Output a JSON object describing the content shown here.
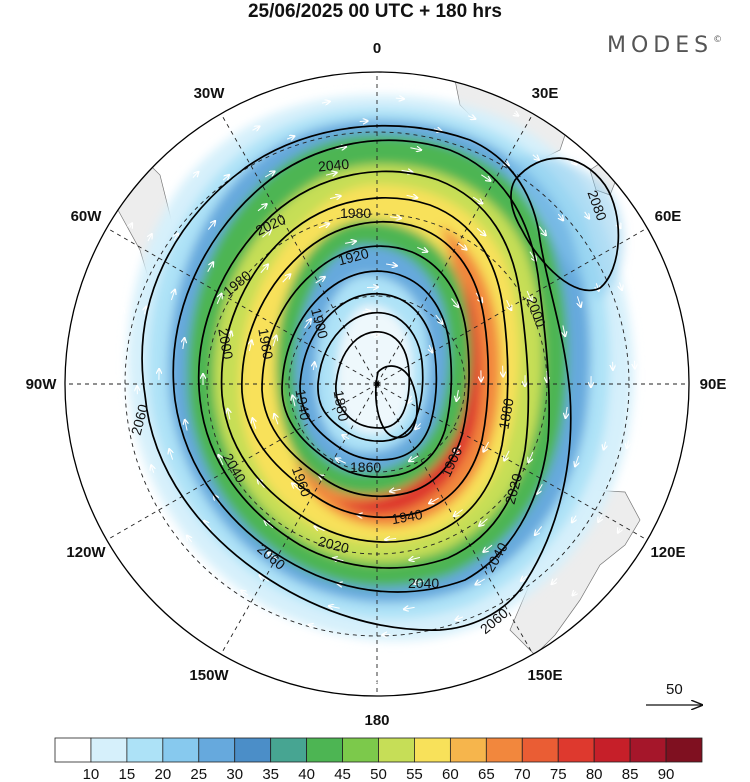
{
  "title": "25/06/2025  00 UTC  + 180 hrs",
  "brand": "MODES",
  "brand_mark": "©",
  "lon_labels": [
    {
      "label": "0",
      "deg": 0
    },
    {
      "label": "30E",
      "deg": 30
    },
    {
      "label": "60E",
      "deg": 60
    },
    {
      "label": "90E",
      "deg": 90
    },
    {
      "label": "120E",
      "deg": 120
    },
    {
      "label": "150E",
      "deg": 150
    },
    {
      "label": "180",
      "deg": 180
    },
    {
      "label": "150W",
      "deg": 210
    },
    {
      "label": "120W",
      "deg": 240
    },
    {
      "label": "90W",
      "deg": 270
    },
    {
      "label": "60W",
      "deg": 300
    },
    {
      "label": "30W",
      "deg": 330
    }
  ],
  "contour_labels": [
    "2080",
    "2060",
    "2040",
    "2020",
    "2000",
    "1980",
    "1960",
    "1940",
    "1920",
    "1900",
    "1880",
    "1860"
  ],
  "vector_ref": {
    "label": "50",
    "icon": "arrow-right-icon"
  },
  "colorbar": {
    "colors": [
      "#ffffff",
      "#d6f0fb",
      "#ade2f7",
      "#87c9ee",
      "#66a9dd",
      "#4b8ec8",
      "#47a592",
      "#4db553",
      "#7cc94b",
      "#c6de57",
      "#f8e15a",
      "#f6b54c",
      "#f2873d",
      "#ea5d34",
      "#de392e",
      "#c61f29",
      "#a5162a",
      "#7f1020"
    ],
    "labels": [
      "10",
      "15",
      "20",
      "25",
      "30",
      "35",
      "40",
      "45",
      "50",
      "55",
      "60",
      "65",
      "70",
      "75",
      "80",
      "85",
      "90"
    ]
  }
}
